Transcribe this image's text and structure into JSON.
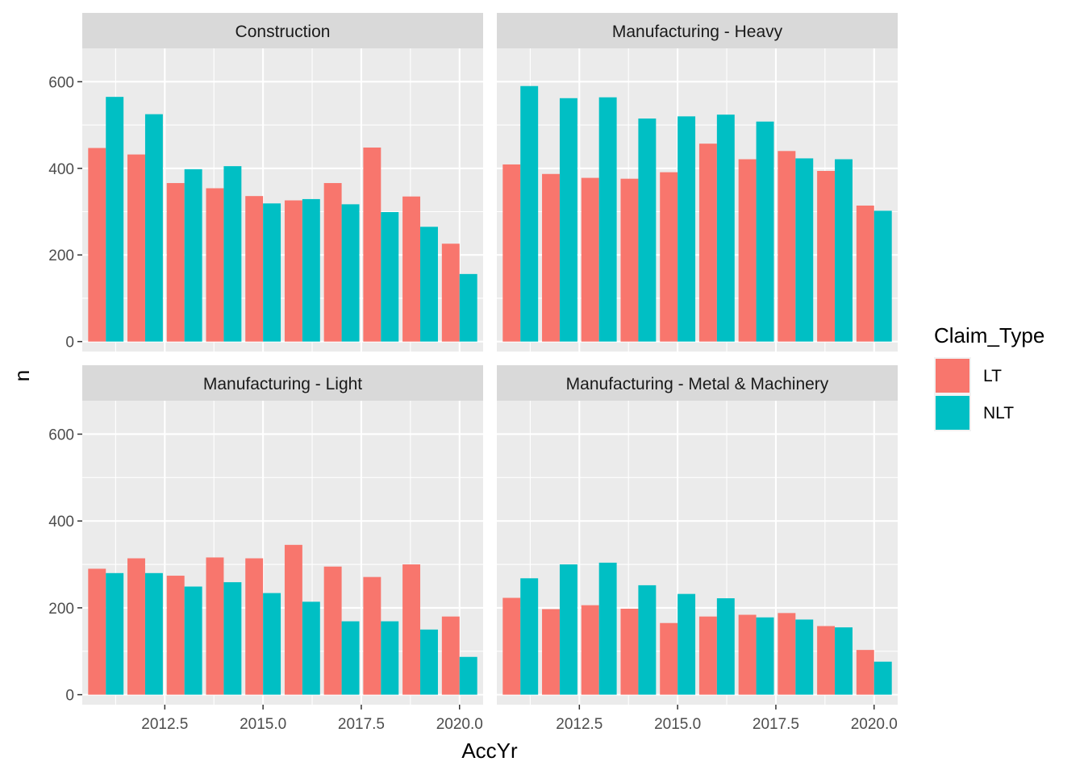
{
  "chart_data": {
    "type": "bar",
    "layout": "facet_wrap 2x2",
    "x": [
      2011,
      2012,
      2013,
      2014,
      2015,
      2016,
      2017,
      2018,
      2019,
      2020
    ],
    "xlabel": "AccYr",
    "ylabel": "n",
    "xticks": [
      2012.5,
      2015.0,
      2017.5,
      2020.0
    ],
    "xtick_labels": [
      "2012.5",
      "2015.0",
      "2017.5",
      "2020.0"
    ],
    "yticks": [
      0,
      200,
      400,
      600
    ],
    "ytick_labels": [
      "0",
      "200",
      "400",
      "600"
    ],
    "ylim": [
      -23,
      677
    ],
    "xlim": [
      2010.4,
      2020.6
    ],
    "grid": true,
    "legend": {
      "title": "Claim_Type",
      "position": "right",
      "items": [
        {
          "name": "LT",
          "color": "#F8766D"
        },
        {
          "name": "NLT",
          "color": "#00BFC4"
        }
      ]
    },
    "panels": [
      {
        "title": "Construction",
        "series": [
          {
            "name": "LT",
            "values": [
              447,
              432,
              366,
              354,
              336,
              326,
              366,
              448,
              335,
              226
            ]
          },
          {
            "name": "NLT",
            "values": [
              565,
              525,
              398,
              405,
              319,
              329,
              317,
              299,
              265,
              156
            ]
          }
        ]
      },
      {
        "title": "Manufacturing - Heavy",
        "series": [
          {
            "name": "LT",
            "values": [
              409,
              387,
              378,
              376,
              391,
              457,
              421,
              440,
              394,
              314
            ]
          },
          {
            "name": "NLT",
            "values": [
              590,
              562,
              564,
              515,
              520,
              524,
              508,
              423,
              421,
              302
            ]
          }
        ]
      },
      {
        "title": "Manufacturing - Light",
        "series": [
          {
            "name": "LT",
            "values": [
              290,
              314,
              274,
              316,
              314,
              345,
              295,
              271,
              300,
              180
            ]
          },
          {
            "name": "NLT",
            "values": [
              280,
              280,
              249,
              259,
              234,
              214,
              169,
              169,
              150,
              87
            ]
          }
        ]
      },
      {
        "title": "Manufacturing - Metal & Machinery",
        "series": [
          {
            "name": "LT",
            "values": [
              223,
              197,
              206,
              198,
              165,
              180,
              184,
              188,
              158,
              103
            ]
          },
          {
            "name": "NLT",
            "values": [
              268,
              300,
              304,
              252,
              232,
              222,
              178,
              173,
              155,
              76
            ]
          }
        ]
      }
    ]
  }
}
